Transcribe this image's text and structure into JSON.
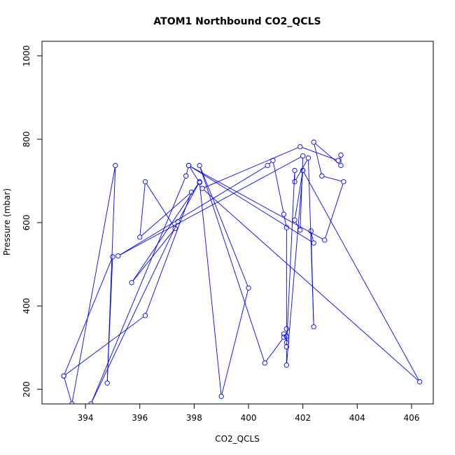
{
  "chart_data": {
    "type": "scatter",
    "title": "ATOM1 Northbound CO2_QCLS",
    "xlabel": "CO2_QCLS",
    "ylabel": "Pressure (mbar)",
    "xlim": [
      392.4,
      406.8
    ],
    "ylim": [
      1035,
      165
    ],
    "y_axis_reversed": true,
    "x_ticks": [
      394,
      396,
      398,
      400,
      402,
      404,
      406
    ],
    "y_ticks": [
      200,
      400,
      600,
      800,
      1000
    ],
    "grid": false,
    "legend": "none",
    "point_color": "#0000ff",
    "line_color": "#0000ff",
    "marker": "open-circle",
    "series": [
      {
        "points": [
          [
            393.2,
            232
          ],
          [
            393.5,
            165
          ],
          [
            395.1,
            737
          ],
          [
            394.8,
            215
          ],
          [
            395.0,
            518
          ],
          [
            393.2,
            232
          ],
          [
            396.2,
            377
          ],
          [
            397.9,
            673
          ],
          [
            396.0,
            565
          ],
          [
            396.2,
            698
          ],
          [
            397.3,
            586
          ],
          [
            395.7,
            456
          ],
          [
            398.2,
            698
          ],
          [
            397.4,
            602
          ],
          [
            394.2,
            165
          ],
          [
            397.7,
            712
          ],
          [
            397.8,
            737
          ],
          [
            398.2,
            696
          ],
          [
            399.0,
            183
          ],
          [
            400.0,
            443
          ],
          [
            398.2,
            737
          ],
          [
            400.6,
            263
          ],
          [
            401.3,
            325
          ],
          [
            401.3,
            333
          ],
          [
            401.4,
            312
          ],
          [
            401.4,
            327
          ],
          [
            401.4,
            345
          ],
          [
            401.4,
            588
          ],
          [
            401.3,
            620
          ],
          [
            400.9,
            749
          ],
          [
            400.7,
            737
          ],
          [
            395.2,
            520
          ],
          [
            402.0,
            760
          ],
          [
            401.9,
            582
          ],
          [
            401.7,
            606
          ],
          [
            402.0,
            725
          ],
          [
            401.4,
            258
          ],
          [
            401.4,
            302
          ],
          [
            401.7,
            725
          ],
          [
            401.7,
            698
          ],
          [
            402.2,
            755
          ],
          [
            402.4,
            350
          ],
          [
            402.3,
            580
          ],
          [
            402.4,
            551
          ],
          [
            397.8,
            737
          ],
          [
            402.8,
            558
          ],
          [
            403.5,
            698
          ],
          [
            402.7,
            712
          ],
          [
            402.4,
            793
          ],
          [
            403.4,
            737
          ],
          [
            403.4,
            762
          ],
          [
            403.3,
            749
          ],
          [
            401.9,
            782
          ],
          [
            398.3,
            682
          ],
          [
            406.3,
            218
          ],
          [
            402.0,
            725
          ]
        ]
      }
    ]
  }
}
